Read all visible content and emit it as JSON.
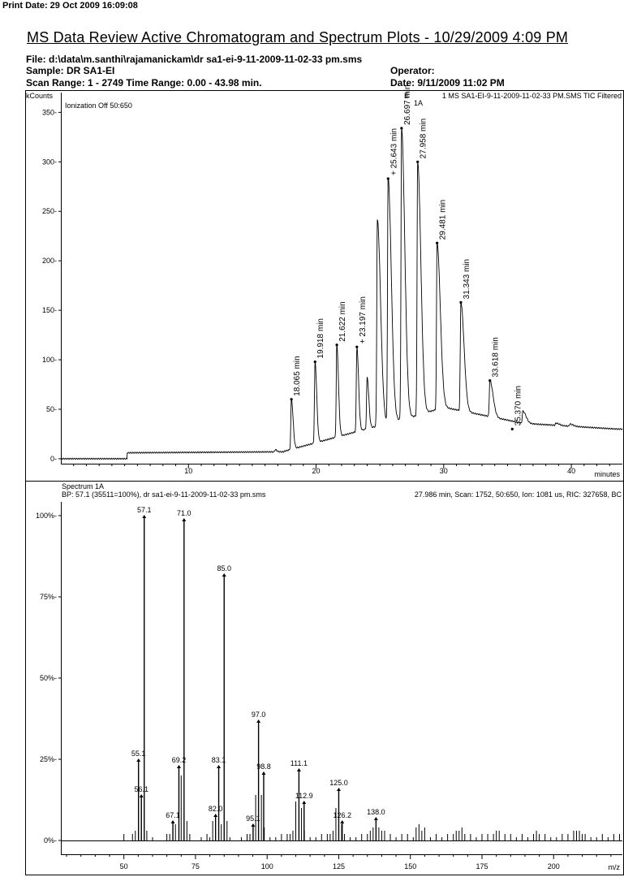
{
  "page": {
    "print_date": "Print Date:  29 Oct 2009 16:09:08",
    "title": "MS Data Review Active Chromatogram and Spectrum Plots - 10/29/2009 4:09 PM",
    "file": "File: d:\\data\\m.santhi\\rajamanickam\\dr sa1-ei-9-11-2009-11-02-33 pm.sms",
    "sample": "Sample: DR SA1-EI",
    "operator": "Operator:",
    "scan_range": "Scan Range: 1 - 2749  Time Range: 0.00 - 43.98 min.",
    "date": "Date: 9/11/2009 11:02 PM"
  },
  "chart_data": [
    {
      "type": "line",
      "ylabel": "kCounts",
      "xlabel": "minutes",
      "header_left": "Ionization Off     50:650",
      "header_right": "1 MS SA1-EI-9-11-2009-11-02-33 PM.SMS TIC Filtered",
      "marker_labels": [
        "E",
        "1A"
      ],
      "xlim": [
        0,
        44
      ],
      "ylim": [
        -5,
        370
      ],
      "x_ticks": [
        10,
        20,
        30,
        40
      ],
      "y_ticks": [
        0,
        50,
        100,
        150,
        200,
        250,
        300,
        350
      ],
      "y_tick_labels": [
        "0-",
        "50-",
        "100-",
        "150-",
        "200-",
        "250-",
        "300-",
        "350-"
      ],
      "peaks": [
        {
          "x": 16.8,
          "y": 9,
          "label": ""
        },
        {
          "x": 18.065,
          "y": 60,
          "label": "18.065 min"
        },
        {
          "x": 19.918,
          "y": 98,
          "label": "19.918 min"
        },
        {
          "x": 21.622,
          "y": 115,
          "label": "21.622 min"
        },
        {
          "x": 23.197,
          "y": 113,
          "label": "+ 23.197 min"
        },
        {
          "x": 24.0,
          "y": 82,
          "label": ""
        },
        {
          "x": 24.8,
          "y": 241,
          "label": ""
        },
        {
          "x": 25.643,
          "y": 283,
          "label": "+ 25.643 min"
        },
        {
          "x": 26.697,
          "y": 334,
          "label": "26.697 min"
        },
        {
          "x": 27.958,
          "y": 300,
          "label": "27.958 min"
        },
        {
          "x": 29.481,
          "y": 218,
          "label": "29.481 min"
        },
        {
          "x": 31.343,
          "y": 158,
          "label": "31.343 min"
        },
        {
          "x": 33.618,
          "y": 79,
          "label": "33.618 min"
        },
        {
          "x": 35.37,
          "y": 30,
          "label": "35.370 min"
        },
        {
          "x": 36.2,
          "y": 48,
          "label": ""
        },
        {
          "x": 38.8,
          "y": 36,
          "label": ""
        },
        {
          "x": 39.9,
          "y": 35,
          "label": ""
        }
      ]
    },
    {
      "type": "bar",
      "title": "Spectrum 1A",
      "header_left": "BP: 57.1 (35511=100%), dr sa1-ei-9-11-2009-11-02-33 pm.sms",
      "header_right": "27.986 min, Scan: 1752, 50:650, Ion: 1081 us, RIC: 327658, BC",
      "xlabel": "m/z",
      "xlim": [
        28,
        224
      ],
      "ylim": [
        0,
        110
      ],
      "x_ticks": [
        50,
        75,
        100,
        125,
        150,
        175,
        200
      ],
      "y_ticks": [
        0,
        25,
        50,
        75,
        100
      ],
      "y_tick_labels": [
        "0%-",
        "25%-",
        "50%-",
        "75%-",
        "100%-"
      ],
      "labeled_peaks": [
        {
          "mz": 55.1,
          "intensity": 25,
          "label": "55.1"
        },
        {
          "mz": 56.1,
          "intensity": 14,
          "label": "56.1"
        },
        {
          "mz": 57.1,
          "intensity": 100,
          "label": "57.1"
        },
        {
          "mz": 67.1,
          "intensity": 6,
          "label": "67.1"
        },
        {
          "mz": 69.2,
          "intensity": 23,
          "label": "69.2"
        },
        {
          "mz": 71.0,
          "intensity": 99,
          "label": "71.0"
        },
        {
          "mz": 82.0,
          "intensity": 8,
          "label": "82.0"
        },
        {
          "mz": 83.1,
          "intensity": 23,
          "label": "83.1"
        },
        {
          "mz": 85.0,
          "intensity": 82,
          "label": "85.0"
        },
        {
          "mz": 95.1,
          "intensity": 5,
          "label": "95.1"
        },
        {
          "mz": 97.0,
          "intensity": 37,
          "label": "97.0"
        },
        {
          "mz": 98.8,
          "intensity": 21,
          "label": "98.8"
        },
        {
          "mz": 111.1,
          "intensity": 22,
          "label": "111.1"
        },
        {
          "mz": 112.9,
          "intensity": 12,
          "label": "112.9"
        },
        {
          "mz": 125.0,
          "intensity": 16,
          "label": "125.0"
        },
        {
          "mz": 126.2,
          "intensity": 6,
          "label": "126.2"
        },
        {
          "mz": 138.0,
          "intensity": 7,
          "label": "138.0"
        }
      ],
      "other_peaks": [
        [
          50,
          2
        ],
        [
          53,
          2
        ],
        [
          54,
          3
        ],
        [
          58,
          3
        ],
        [
          60,
          1
        ],
        [
          65,
          2
        ],
        [
          66,
          2
        ],
        [
          68,
          5
        ],
        [
          70,
          20
        ],
        [
          72,
          6
        ],
        [
          73,
          2
        ],
        [
          77,
          1
        ],
        [
          79,
          2
        ],
        [
          80,
          1
        ],
        [
          81,
          6
        ],
        [
          84,
          5
        ],
        [
          86,
          6
        ],
        [
          87,
          1
        ],
        [
          91,
          1
        ],
        [
          93,
          2
        ],
        [
          94,
          2
        ],
        [
          96,
          14
        ],
        [
          98,
          14
        ],
        [
          99,
          4
        ],
        [
          101,
          1
        ],
        [
          103,
          1
        ],
        [
          105,
          2
        ],
        [
          107,
          2
        ],
        [
          108,
          2
        ],
        [
          109,
          3
        ],
        [
          110,
          12
        ],
        [
          112,
          10
        ],
        [
          113,
          3
        ],
        [
          115,
          1
        ],
        [
          117,
          1
        ],
        [
          119,
          2
        ],
        [
          121,
          2
        ],
        [
          122,
          2
        ],
        [
          123,
          3
        ],
        [
          124,
          10
        ],
        [
          126,
          5
        ],
        [
          127,
          2
        ],
        [
          129,
          1
        ],
        [
          131,
          1
        ],
        [
          133,
          2
        ],
        [
          135,
          2
        ],
        [
          136,
          3
        ],
        [
          137,
          4
        ],
        [
          139,
          4
        ],
        [
          140,
          3
        ],
        [
          141,
          3
        ],
        [
          143,
          2
        ],
        [
          145,
          1
        ],
        [
          147,
          2
        ],
        [
          149,
          2
        ],
        [
          151,
          1
        ],
        [
          152,
          4
        ],
        [
          153,
          5
        ],
        [
          154,
          3
        ],
        [
          155,
          4
        ],
        [
          157,
          1
        ],
        [
          159,
          2
        ],
        [
          161,
          1
        ],
        [
          163,
          2
        ],
        [
          165,
          2
        ],
        [
          166,
          3
        ],
        [
          167,
          3
        ],
        [
          168,
          4
        ],
        [
          169,
          2
        ],
        [
          171,
          2
        ],
        [
          173,
          1
        ],
        [
          175,
          2
        ],
        [
          177,
          2
        ],
        [
          179,
          2
        ],
        [
          180,
          3
        ],
        [
          181,
          3
        ],
        [
          183,
          2
        ],
        [
          185,
          2
        ],
        [
          187,
          1
        ],
        [
          189,
          2
        ],
        [
          191,
          1
        ],
        [
          193,
          2
        ],
        [
          194,
          3
        ],
        [
          195,
          2
        ],
        [
          197,
          2
        ],
        [
          199,
          1
        ],
        [
          201,
          1
        ],
        [
          203,
          2
        ],
        [
          205,
          2
        ],
        [
          207,
          3
        ],
        [
          208,
          3
        ],
        [
          209,
          3
        ],
        [
          210,
          2
        ],
        [
          211,
          2
        ],
        [
          213,
          1
        ],
        [
          215,
          1
        ],
        [
          217,
          2
        ],
        [
          219,
          1
        ],
        [
          221,
          2
        ],
        [
          223,
          2
        ]
      ]
    }
  ]
}
